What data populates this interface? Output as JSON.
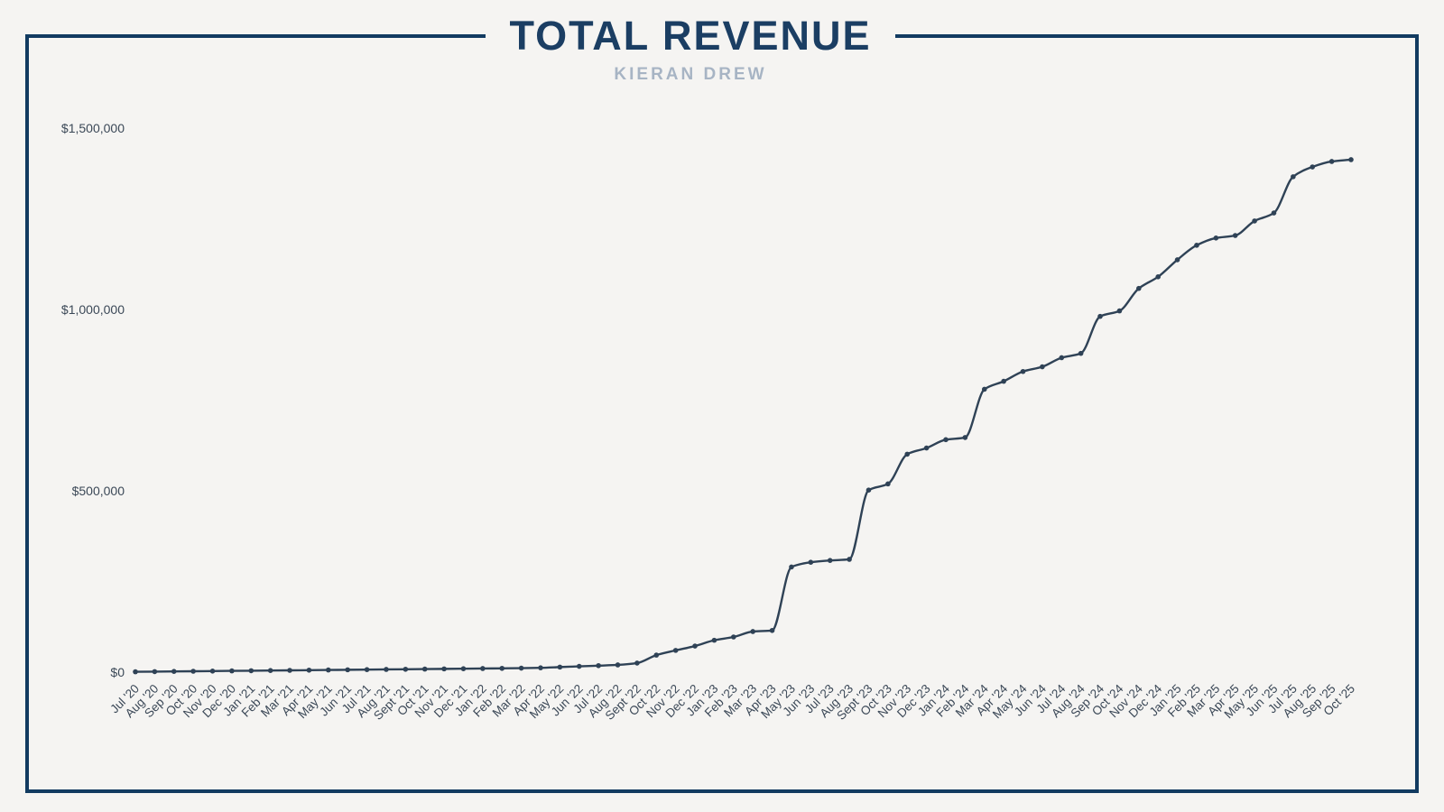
{
  "header": {
    "title": "TOTAL REVENUE",
    "subtitle": "KIERAN DREW"
  },
  "colors": {
    "background": "#F5F4F2",
    "frame": "#123B61",
    "title": "#1B3E63",
    "subtitle": "#A7B4C4",
    "line": "#2F4256",
    "marker": "#2F4256",
    "axis_text": "#3B4857"
  },
  "chart_data": {
    "type": "line",
    "title": "TOTAL REVENUE",
    "subtitle": "KIERAN DREW",
    "xlabel": "",
    "ylabel": "",
    "ylim": [
      0,
      1500000
    ],
    "grid": false,
    "legend": "none",
    "marker": "dot",
    "x_tick_rotation": -45,
    "yticks": [
      {
        "value": 0,
        "label": "$0"
      },
      {
        "value": 500000,
        "label": "$500,000"
      },
      {
        "value": 1000000,
        "label": "$1,000,000"
      },
      {
        "value": 1500000,
        "label": "$1,500,000"
      }
    ],
    "x": [
      "Jul '20",
      "Aug '20",
      "Sep '20",
      "Oct '20",
      "Nov '20",
      "Dec '20",
      "Jan '21",
      "Feb '21",
      "Mar '21",
      "Apr '21",
      "May '21",
      "Jun '21",
      "Jul '21",
      "Aug '21",
      "Sept '21",
      "Oct '21",
      "Nov '21",
      "Dec '21",
      "Jan '22",
      "Feb '22",
      "Mar '22",
      "Apr '22",
      "May '22",
      "Jun '22",
      "Jul '22",
      "Aug '22",
      "Sept '22",
      "Oct '22",
      "Nov '22",
      "Dec '22",
      "Jan '23",
      "Feb '23",
      "Mar '23",
      "Apr '23",
      "May '23",
      "Jun '23",
      "Jul '23",
      "Aug '23",
      "Sept '23",
      "Oct '23",
      "Nov '23",
      "Dec '23",
      "Jan '24",
      "Feb '24",
      "Mar '24",
      "Apr '24",
      "May '24",
      "Jun '24",
      "Jul '24",
      "Aug '24",
      "Sep '24",
      "Oct '24",
      "Nov '24",
      "Dec '24",
      "Jan '25",
      "Feb '25",
      "Mar '25",
      "Apr '25",
      "May '25",
      "Jun '25",
      "Jul '25",
      "Aug '25",
      "Sep '25",
      "Oct '25"
    ],
    "values": [
      1000,
      1500,
      2000,
      2500,
      3000,
      3500,
      4000,
      4500,
      5000,
      5500,
      6000,
      6500,
      7000,
      7500,
      8000,
      8500,
      9000,
      9500,
      10000,
      10500,
      11000,
      12000,
      14000,
      16000,
      18000,
      20000,
      25000,
      47000,
      60000,
      72000,
      88000,
      97000,
      112000,
      115000,
      290000,
      303000,
      308000,
      311000,
      502000,
      519000,
      601000,
      618000,
      641000,
      647000,
      780000,
      802000,
      829000,
      842000,
      867000,
      879000,
      981000,
      996000,
      1058000,
      1090000,
      1137000,
      1177000,
      1197000,
      1204000,
      1244000,
      1266000,
      1366000,
      1393000,
      1408000,
      1413000
    ]
  }
}
